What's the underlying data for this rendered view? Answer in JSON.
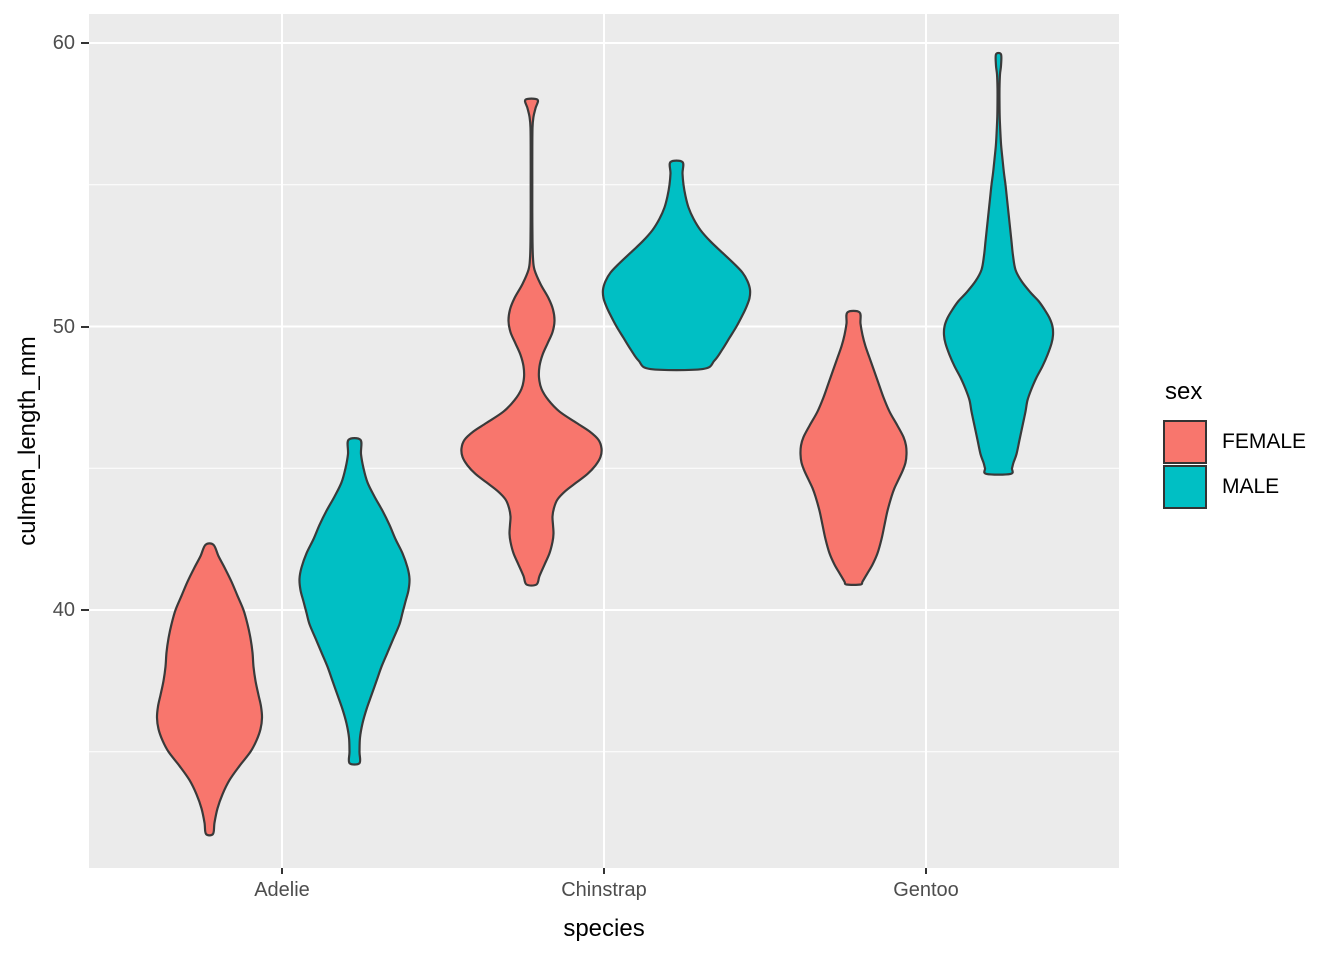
{
  "figure": {
    "panel_bg": "#EBEBEB",
    "grid_color": "#FFFFFF",
    "outline_color": "#3A3A3A",
    "tick_mark_color": "#333333",
    "tick_label_color": "#4D4D4D",
    "axis_title_color": "#000000"
  },
  "legend": {
    "title": "sex",
    "items": [
      {
        "label": "FEMALE",
        "color": "#F8766D"
      },
      {
        "label": "MALE",
        "color": "#00BFC4"
      }
    ]
  },
  "chart_data": {
    "type": "violin",
    "title": "",
    "xlabel": "species",
    "ylabel": "culmen_length_mm",
    "ylim": [
      30.9,
      61.0
    ],
    "grid": true,
    "legend_position": "right",
    "categories": [
      "Adelie",
      "Chinstrap",
      "Gentoo"
    ],
    "groups": [
      "FEMALE",
      "MALE"
    ],
    "colors": {
      "FEMALE": "#F8766D",
      "MALE": "#00BFC4"
    },
    "y_major_ticks": [
      {
        "value": 60,
        "label": "60"
      },
      {
        "value": 50,
        "label": "50"
      },
      {
        "value": 40,
        "label": "40"
      }
    ],
    "y_minor_ticks": [
      55,
      45,
      35
    ],
    "violins": [
      {
        "species": "Adelie",
        "sex": "FEMALE",
        "y_range": [
          32.1,
          42.3
        ],
        "profile": [
          [
            42.3,
            4
          ],
          [
            41.9,
            9
          ],
          [
            41.5,
            15
          ],
          [
            41.0,
            22
          ],
          [
            40.5,
            28
          ],
          [
            40.0,
            34
          ],
          [
            39.5,
            38
          ],
          [
            39.0,
            41
          ],
          [
            38.5,
            43
          ],
          [
            38.0,
            44
          ],
          [
            37.5,
            46
          ],
          [
            37.0,
            49
          ],
          [
            36.6,
            51.5
          ],
          [
            36.2,
            52.5
          ],
          [
            35.8,
            51
          ],
          [
            35.4,
            47
          ],
          [
            35.0,
            41
          ],
          [
            34.5,
            30
          ],
          [
            34.0,
            20
          ],
          [
            33.5,
            13
          ],
          [
            33.0,
            8
          ],
          [
            32.5,
            5
          ],
          [
            32.1,
            3.5
          ]
        ]
      },
      {
        "species": "Adelie",
        "sex": "MALE",
        "y_range": [
          34.6,
          46.0
        ],
        "profile": [
          [
            46.0,
            6
          ],
          [
            45.5,
            6.5
          ],
          [
            45.0,
            9
          ],
          [
            44.5,
            13
          ],
          [
            44.0,
            20
          ],
          [
            43.5,
            28
          ],
          [
            43.0,
            35
          ],
          [
            42.5,
            41
          ],
          [
            42.0,
            48
          ],
          [
            41.5,
            53
          ],
          [
            41.1,
            55
          ],
          [
            40.7,
            54
          ],
          [
            40.3,
            51
          ],
          [
            39.9,
            48
          ],
          [
            39.5,
            45
          ],
          [
            39.0,
            39
          ],
          [
            38.5,
            33
          ],
          [
            38.0,
            27
          ],
          [
            37.5,
            22
          ],
          [
            37.0,
            17
          ],
          [
            36.5,
            12
          ],
          [
            36.0,
            8
          ],
          [
            35.5,
            5.5
          ],
          [
            35.0,
            5
          ],
          [
            34.6,
            5
          ]
        ]
      },
      {
        "species": "Chinstrap",
        "sex": "FEMALE",
        "y_range": [
          40.9,
          58.0
        ],
        "profile": [
          [
            58.0,
            6
          ],
          [
            57.7,
            4
          ],
          [
            57.4,
            2
          ],
          [
            57.0,
            1
          ],
          [
            56.0,
            0.8
          ],
          [
            55.0,
            0.8
          ],
          [
            54.0,
            0.8
          ],
          [
            53.0,
            1
          ],
          [
            52.4,
            1.5
          ],
          [
            52.0,
            3
          ],
          [
            51.5,
            9
          ],
          [
            51.0,
            17
          ],
          [
            50.6,
            21.5
          ],
          [
            50.2,
            23
          ],
          [
            49.8,
            21
          ],
          [
            49.4,
            16
          ],
          [
            49.0,
            11
          ],
          [
            48.6,
            8
          ],
          [
            48.2,
            7.5
          ],
          [
            47.8,
            10
          ],
          [
            47.4,
            17
          ],
          [
            47.0,
            28
          ],
          [
            46.6,
            45
          ],
          [
            46.3,
            58
          ],
          [
            46.0,
            67
          ],
          [
            45.7,
            70
          ],
          [
            45.4,
            69
          ],
          [
            45.1,
            64
          ],
          [
            44.8,
            56
          ],
          [
            44.5,
            45
          ],
          [
            44.2,
            34
          ],
          [
            43.9,
            26
          ],
          [
            43.6,
            22.5
          ],
          [
            43.3,
            21
          ],
          [
            43.0,
            21.5
          ],
          [
            42.7,
            22
          ],
          [
            42.4,
            21
          ],
          [
            42.0,
            18
          ],
          [
            41.6,
            13
          ],
          [
            41.2,
            8
          ],
          [
            40.9,
            5
          ]
        ]
      },
      {
        "species": "Chinstrap",
        "sex": "MALE",
        "y_range": [
          48.5,
          55.8
        ],
        "profile": [
          [
            55.8,
            6
          ],
          [
            55.4,
            6
          ],
          [
            55.0,
            7
          ],
          [
            54.6,
            9
          ],
          [
            54.2,
            12
          ],
          [
            53.8,
            17
          ],
          [
            53.4,
            24
          ],
          [
            53.0,
            34
          ],
          [
            52.6,
            46
          ],
          [
            52.2,
            58
          ],
          [
            51.9,
            66
          ],
          [
            51.6,
            71
          ],
          [
            51.3,
            73.5
          ],
          [
            51.0,
            73
          ],
          [
            50.7,
            70
          ],
          [
            50.4,
            66
          ],
          [
            50.0,
            60
          ],
          [
            49.6,
            53
          ],
          [
            49.2,
            46
          ],
          [
            48.8,
            38
          ],
          [
            48.5,
            26
          ]
        ]
      },
      {
        "species": "Gentoo",
        "sex": "FEMALE",
        "y_range": [
          40.9,
          50.5
        ],
        "profile": [
          [
            50.5,
            6
          ],
          [
            50.1,
            7
          ],
          [
            49.7,
            9
          ],
          [
            49.3,
            12
          ],
          [
            48.9,
            16
          ],
          [
            48.5,
            20
          ],
          [
            48.0,
            25
          ],
          [
            47.5,
            30
          ],
          [
            47.0,
            36
          ],
          [
            46.5,
            44
          ],
          [
            46.1,
            50
          ],
          [
            45.8,
            52.5
          ],
          [
            45.5,
            53
          ],
          [
            45.2,
            52
          ],
          [
            44.9,
            49
          ],
          [
            44.6,
            45
          ],
          [
            44.3,
            41
          ],
          [
            44.0,
            38
          ],
          [
            43.5,
            34
          ],
          [
            43.0,
            31
          ],
          [
            42.5,
            28
          ],
          [
            42.0,
            24
          ],
          [
            41.6,
            19
          ],
          [
            41.3,
            14
          ],
          [
            41.0,
            9
          ],
          [
            40.9,
            7
          ]
        ]
      },
      {
        "species": "Gentoo",
        "sex": "MALE",
        "y_range": [
          44.8,
          59.6
        ],
        "profile": [
          [
            59.6,
            2.5
          ],
          [
            59.2,
            2.5
          ],
          [
            58.9,
            1.5
          ],
          [
            58.4,
            1
          ],
          [
            57.9,
            1
          ],
          [
            57.4,
            1.2
          ],
          [
            56.9,
            1.8
          ],
          [
            56.4,
            2.6
          ],
          [
            55.9,
            4
          ],
          [
            55.4,
            5.5
          ],
          [
            55.0,
            7
          ],
          [
            54.5,
            8.5
          ],
          [
            54.0,
            10
          ],
          [
            53.5,
            11.5
          ],
          [
            53.0,
            13
          ],
          [
            52.5,
            14.5
          ],
          [
            52.0,
            17
          ],
          [
            51.6,
            23
          ],
          [
            51.2,
            32
          ],
          [
            50.9,
            40
          ],
          [
            50.6,
            46
          ],
          [
            50.3,
            51
          ],
          [
            50.0,
            54
          ],
          [
            49.7,
            54.5
          ],
          [
            49.4,
            53
          ],
          [
            49.0,
            49
          ],
          [
            48.6,
            44
          ],
          [
            48.2,
            38
          ],
          [
            47.8,
            33
          ],
          [
            47.4,
            29
          ],
          [
            47.0,
            27
          ],
          [
            46.5,
            24
          ],
          [
            46.0,
            21
          ],
          [
            45.5,
            18
          ],
          [
            45.2,
            15
          ],
          [
            45.0,
            13.5
          ],
          [
            44.8,
            12
          ]
        ]
      }
    ],
    "profile_units": "y value in mm vs half-width in px (max dodge half-width 72.5px)"
  }
}
